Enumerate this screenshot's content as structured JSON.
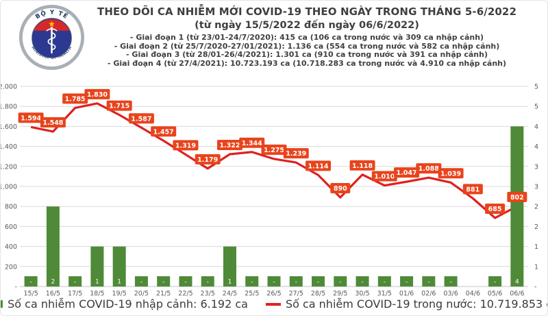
{
  "header": {
    "title": "THEO DÕI CA NHIỄM MỚI COVID-19 THEO NGÀY TRONG THÁNG 5-6/2022",
    "subtitle": "(từ ngày 15/5/2022 đến ngày 06/6/2022)",
    "bullets": [
      "- Giai đoạn 1 (từ 23/01-24/7/2020): 415 ca (106 ca trong nước và 309 ca nhập cảnh)",
      "- Giai đoạn 2 (từ 25/7/2020-27/01/2021): 1.136 ca (554 ca trong nước và 582 ca nhập cảnh)",
      "- Giai đoạn 3 (từ 28/01-26/4/2021): 1.301 ca (910 ca trong nước và 391 ca nhập cảnh)",
      "- Giai đoạn 4 (từ 27/4/2021): 10.723.193 ca (10.718.283 ca trong nước và 4.910 ca nhập cảnh)"
    ],
    "logo": {
      "top": "BỘ Y TẾ",
      "bottom": "MINISTRY OF HEALTH"
    }
  },
  "chart_data": {
    "type": "combo-bar-line",
    "categories": [
      "15/5",
      "16/5",
      "17/5",
      "18/5",
      "19/5",
      "20/5",
      "21/5",
      "22/5",
      "23/5",
      "24/5",
      "25/5",
      "26/5",
      "27/5",
      "28/5",
      "29/5",
      "30/5",
      "31/5",
      "01/6",
      "02/6",
      "03/6",
      "04/6",
      "05/6",
      "06/6"
    ],
    "series": [
      {
        "name": "Số ca nhiễm COVID-19 nhập cảnh",
        "type": "bar",
        "axis": "right",
        "values": [
          0,
          2,
          0,
          1,
          1,
          0,
          0,
          0,
          0,
          1,
          0,
          0,
          0,
          0,
          0,
          0,
          0,
          0,
          0,
          0,
          null,
          0,
          4
        ],
        "labels": [
          "-",
          "2",
          "-",
          "1",
          "1",
          "-",
          "-",
          "-",
          "-",
          "1",
          "-",
          "-",
          "-",
          "-",
          "-",
          "-",
          "-",
          "-",
          "-",
          "-",
          null,
          "-",
          "4"
        ],
        "color": "#4f8a38",
        "label_color": "#ffffff"
      },
      {
        "name": "Số ca nhiễm COVID-19 trong nước",
        "type": "line",
        "axis": "left",
        "values": [
          1594,
          1548,
          1785,
          1830,
          1715,
          1587,
          1457,
          1319,
          1179,
          1322,
          1344,
          1275,
          1239,
          1114,
          890,
          1118,
          1010,
          1047,
          1088,
          1039,
          881,
          685,
          802
        ],
        "labels": [
          "1.594",
          "1.548",
          "1.785",
          "1.830",
          "1.715",
          "1.587",
          "1.457",
          "1.319",
          "1.179",
          "1.322",
          "1.344",
          "1.275",
          "1.239",
          "1.114",
          "890",
          "1.118",
          "1.010",
          "1.047",
          "1.088",
          "1.039",
          "881",
          "685",
          "802"
        ],
        "color": "#e02020",
        "label_bg": "#e8441c",
        "label_color": "#ffffff"
      }
    ],
    "left_axis": {
      "min": 0,
      "max": 2000,
      "ticks_top_to_bottom": [
        "2.000",
        "1.800",
        "1.600",
        "1.400",
        "1.200",
        "1.000",
        "800",
        "600",
        "400",
        "200",
        "-"
      ]
    },
    "right_axis": {
      "min": 0,
      "max": 5,
      "ticks_top_to_bottom": [
        "5",
        "5",
        "4",
        "4",
        "3",
        "3",
        "2",
        "2",
        "1",
        "1",
        "-"
      ]
    },
    "grid": true,
    "gridline_color": "#d9d9d9",
    "axis_text_color": "#595959",
    "legend_position": "bottom"
  },
  "legend": [
    {
      "label": "Số ca nhiễm COVID-19 nhập cảnh: 6.192 ca"
    },
    {
      "label": "Số ca nhiễm COVID-19 trong nước: 10.719.853 ca"
    }
  ]
}
